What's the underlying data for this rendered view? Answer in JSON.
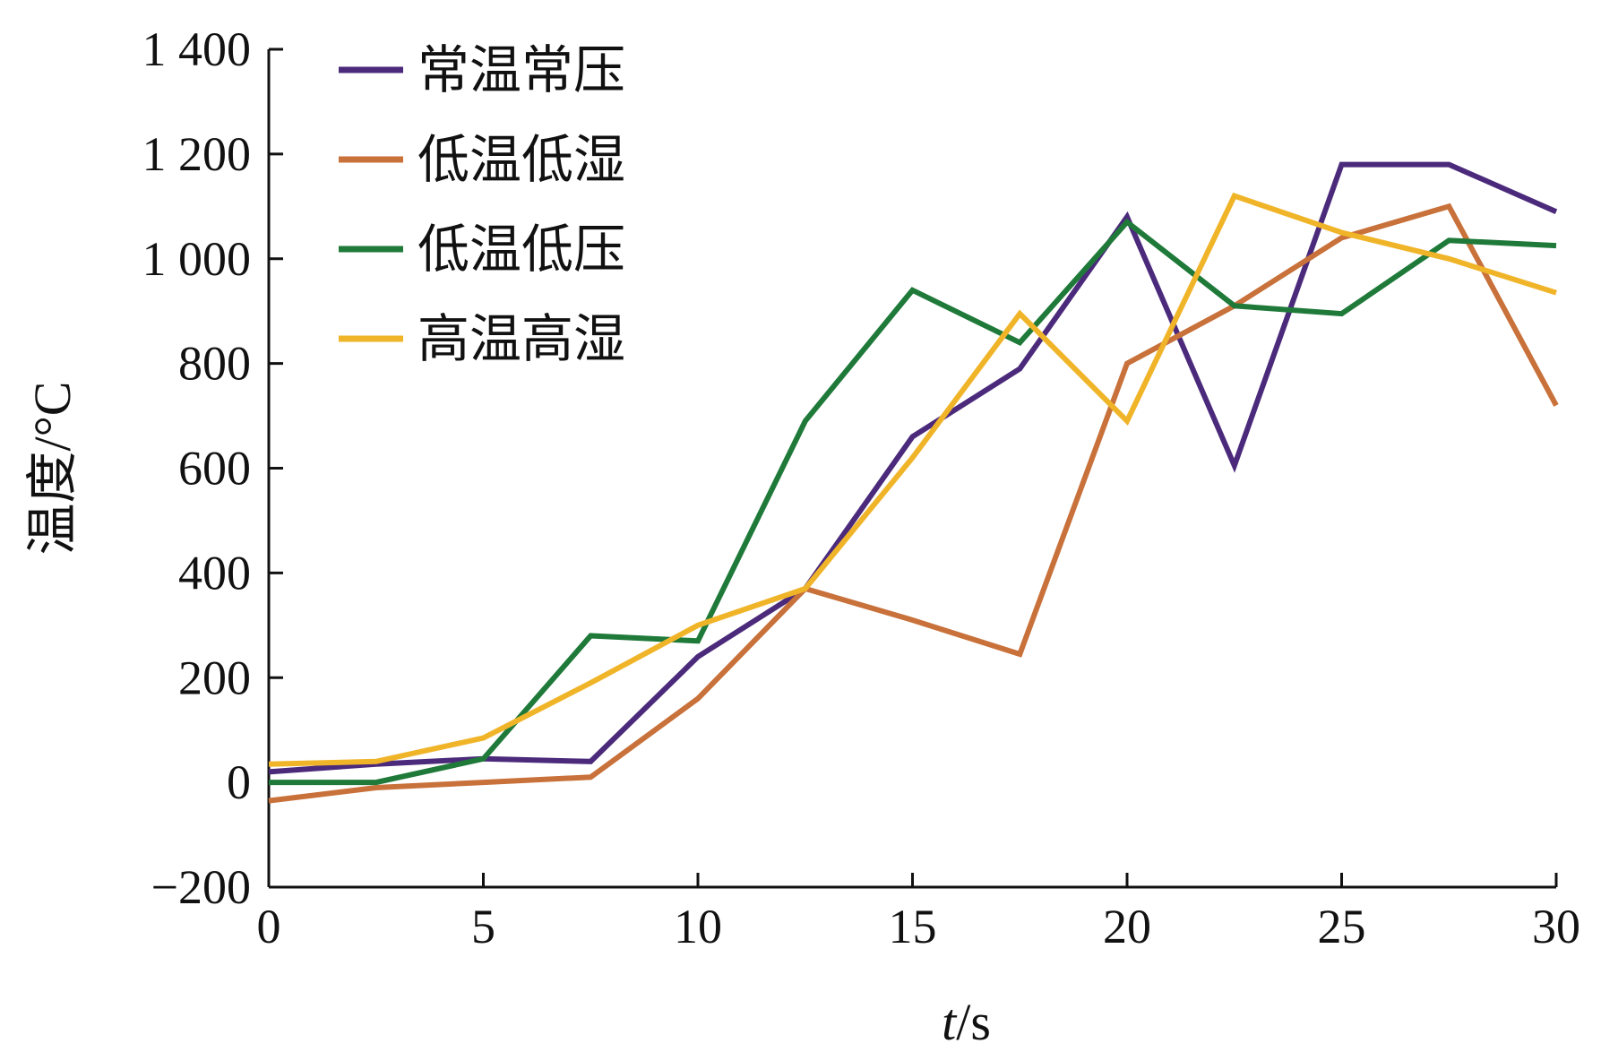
{
  "chart_data": {
    "type": "line",
    "xlabel_italic": "t",
    "xlabel_unit": "/s",
    "ylabel": "温度/°C",
    "xlim": [
      0,
      30
    ],
    "ylim": [
      -200,
      1400
    ],
    "xticks": [
      0,
      5,
      10,
      15,
      20,
      25,
      30
    ],
    "xtick_labels": [
      "0",
      "5",
      "10",
      "15",
      "20",
      "25",
      "30"
    ],
    "yticks": [
      -200,
      0,
      200,
      400,
      600,
      800,
      1000,
      1200,
      1400
    ],
    "ytick_labels": [
      "−200",
      "0",
      "200",
      "400",
      "600",
      "800",
      "1 000",
      "1 200",
      "1 400"
    ],
    "grid": false,
    "legend_position": "top-left",
    "x": [
      0,
      2.5,
      5,
      7.5,
      10,
      12.5,
      15,
      17.5,
      20,
      22.5,
      25,
      27.5,
      30
    ],
    "series": [
      {
        "name": "常温常压",
        "color": "#4b2a7b",
        "values": [
          20,
          35,
          45,
          40,
          240,
          370,
          660,
          790,
          1080,
          605,
          1180,
          1180,
          1090
        ]
      },
      {
        "name": "低温低湿",
        "color": "#c8713a",
        "values": [
          -35,
          -10,
          0,
          10,
          160,
          370,
          310,
          245,
          800,
          910,
          1040,
          1100,
          720
        ]
      },
      {
        "name": "低温低压",
        "color": "#1f7a3a",
        "values": [
          0,
          0,
          45,
          280,
          270,
          690,
          940,
          840,
          1070,
          910,
          895,
          1035,
          1025
        ]
      },
      {
        "name": "高温高湿",
        "color": "#f0b429",
        "values": [
          35,
          40,
          85,
          190,
          300,
          370,
          620,
          895,
          690,
          1120,
          1050,
          1000,
          935
        ]
      }
    ]
  }
}
